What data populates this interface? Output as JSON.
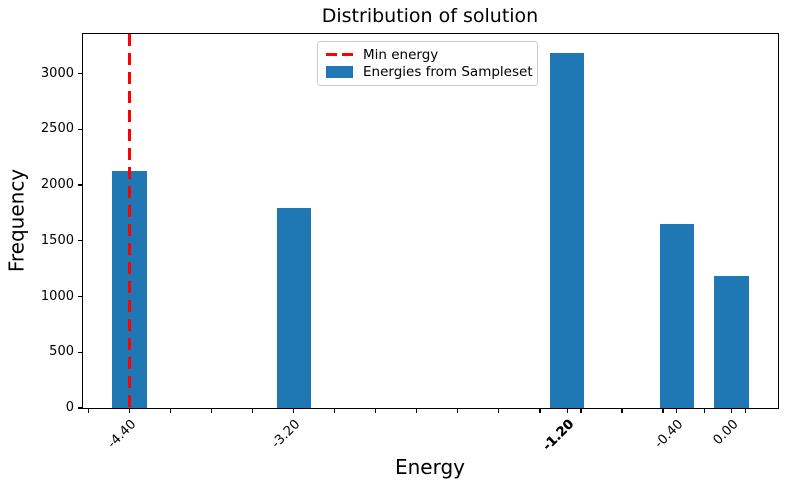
{
  "chart_data": {
    "type": "bar",
    "title": "Distribution of solution",
    "xlabel": "Energy",
    "ylabel": "Frequency",
    "bars": [
      {
        "energy": -4.4,
        "label": "-4.40",
        "count": 2125,
        "bold_label": false
      },
      {
        "energy": -3.2,
        "label": "-3.20",
        "count": 1795,
        "bold_label": false
      },
      {
        "energy": -1.2,
        "label": "-1.20",
        "count": 3185,
        "bold_label": true
      },
      {
        "energy": -0.4,
        "label": "-0.40",
        "count": 1650,
        "bold_label": false
      },
      {
        "energy": 0.0,
        "label": "0.00",
        "count": 1180,
        "bold_label": false
      }
    ],
    "bar_width": 0.25,
    "bar_color": "#1f77b4",
    "xlim": [
      -4.74,
      0.34
    ],
    "ylim": [
      0,
      3355
    ],
    "yticks": [
      0,
      500,
      1000,
      1500,
      2000,
      2500,
      3000
    ],
    "minor_xticks": [
      -4.7,
      -4.4,
      -4.1,
      -3.8,
      -3.5,
      -3.2,
      -2.9,
      -2.6,
      -2.3,
      -2.0,
      -1.7,
      -1.4,
      -1.1,
      -0.8,
      -0.5,
      -0.2,
      0.1
    ],
    "grid": false,
    "min_energy_line": {
      "x": -4.4,
      "color": "#ff0000",
      "style": "dashed",
      "line_width": 3,
      "label": "Min energy"
    },
    "legend": {
      "position": "upper center",
      "items": [
        {
          "type": "dashed-line",
          "color": "#ff0000",
          "label": "Min energy"
        },
        {
          "type": "patch",
          "color": "#1f77b4",
          "label": "Energies from Sampleset"
        }
      ]
    }
  }
}
